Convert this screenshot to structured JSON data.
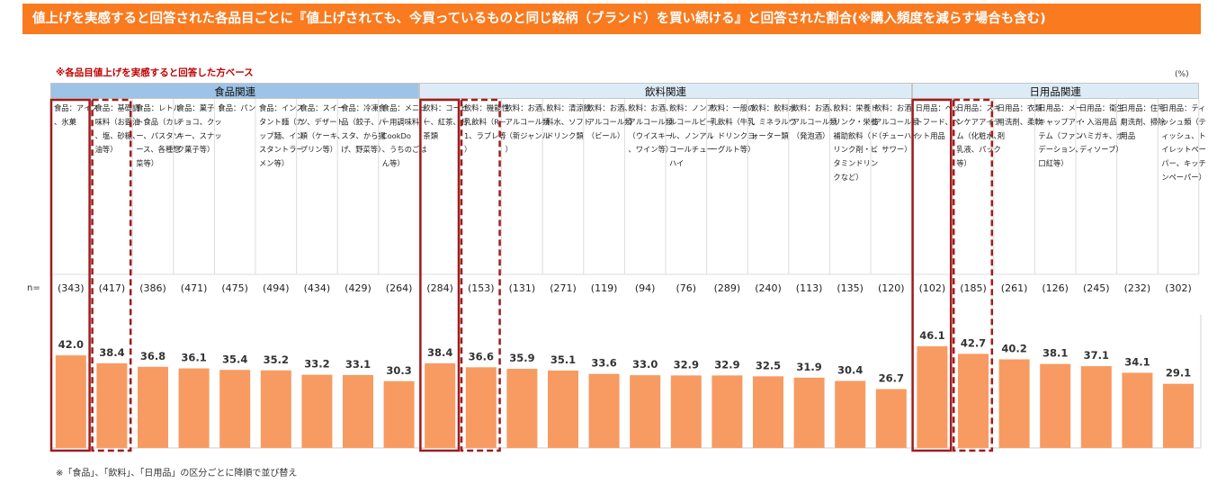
{
  "title": "値上げを実感すると回答された各品目ごとに『値上げされても、今買っているものと同じ銘柄（ブランド）を買い続ける』と回答された割合(※購入頻度を減らす場合も含む)",
  "base_note": "※各品目値上げを実感すると回答した方ベース",
  "unit": "(%)",
  "n_label": "n=",
  "footnote": "※「食品」、「飲料」、「日用品」の区分ごとに降順で並び替え",
  "colors": {
    "title_bg": "#f97a1f",
    "bar": "#f79b62",
    "food_header": "#9dc3e6",
    "drink_header": "#ddebf7",
    "daily_header": "#ddebf7",
    "highlight": "#a01c1c"
  },
  "chart_data": {
    "type": "bar",
    "unit": "%",
    "ylim": [
      0,
      50
    ],
    "groups": [
      {
        "name": "食品関連",
        "start": 0,
        "end": 8
      },
      {
        "name": "飲料関連",
        "start": 9,
        "end": 20
      },
      {
        "name": "日用品関連",
        "start": 21,
        "end": 27
      }
    ],
    "categories": [
      "食品：アイス、氷菓",
      "食品：基礎調味料（お醤油、塩、砂糖、油等）",
      "食品：レトルト食品（カレー、パスタソース、各種惣菜等）",
      "食品：菓子（チョコ、クッキー、スナック菓子等）",
      "食品：パン",
      "食品：インスタント麺（カップ麺、インスタントラーメン等）",
      "食品：スイーツ、デザート類（ケーキ、プリン等）",
      "食品：冷凍食品（餃子、パスタ、から揚げ、野菜等）",
      "食品：メニュー用調味料（CookDo、うちのごはん等）",
      "飲料：コーヒー、紅茶、お茶類",
      "飲料：機能性乳飲料（R－1、ラブレ等）",
      "飲料：お酒、アルコール類（新ジャンル）",
      "飲料：清涼飲料水、ソフトドリンク類",
      "飲料：お酒、アルコール類（ビール）",
      "飲料：お酒、アルコール類（ウイスキー、ワイン等）",
      "飲料：ノンアルコールビール、ノンアルコールチューハイ",
      "飲料：一般の乳飲料（牛乳、ドリンクヨーグルト等）",
      "飲料：飲料水、ミネラルウォーター類",
      "飲料：お酒、アルコール類（発泡酒）",
      "飲料：栄養ドリンク・栄養補助飲料（ドリンク剤・ビタミンドリンクなど）",
      "飲料：お酒、アルコール類（チューハイ、サワー）",
      "日用品：ペットフード、ペット用品",
      "日用品：スキンケアアイテム（化粧水、乳液、パック等）",
      "日用品：衣類用洗剤、柔軟剤",
      "日用品：メーキャップアイテム（ファンデーション、口紅等）",
      "日用品：衛生・入浴用品（ハミガキ、ボディソープ）",
      "日用品：住宅用洗剤、掃除用品",
      "日用品：ティッシュ類（ティッシュ、トイレットペーパー、キッチンペーパー）"
    ],
    "n": [
      "(343)",
      "(417)",
      "(386)",
      "(471)",
      "(475)",
      "(494)",
      "(434)",
      "(429)",
      "(264)",
      "(284)",
      "(153)",
      "(131)",
      "(271)",
      "(119)",
      "(94)",
      "(76)",
      "(289)",
      "(240)",
      "(113)",
      "(135)",
      "(120)",
      "(102)",
      "(185)",
      "(261)",
      "(126)",
      "(245)",
      "(232)",
      "(302)"
    ],
    "values": [
      42.0,
      38.4,
      36.8,
      36.1,
      35.4,
      35.2,
      33.2,
      33.1,
      30.3,
      38.4,
      36.6,
      35.9,
      35.1,
      33.6,
      33.0,
      32.9,
      32.9,
      32.5,
      31.9,
      30.4,
      26.7,
      46.1,
      42.7,
      40.2,
      38.1,
      37.1,
      34.1,
      29.1
    ],
    "highlight_solid": [
      0,
      9,
      21
    ],
    "highlight_dashed": [
      1,
      10,
      22
    ]
  }
}
